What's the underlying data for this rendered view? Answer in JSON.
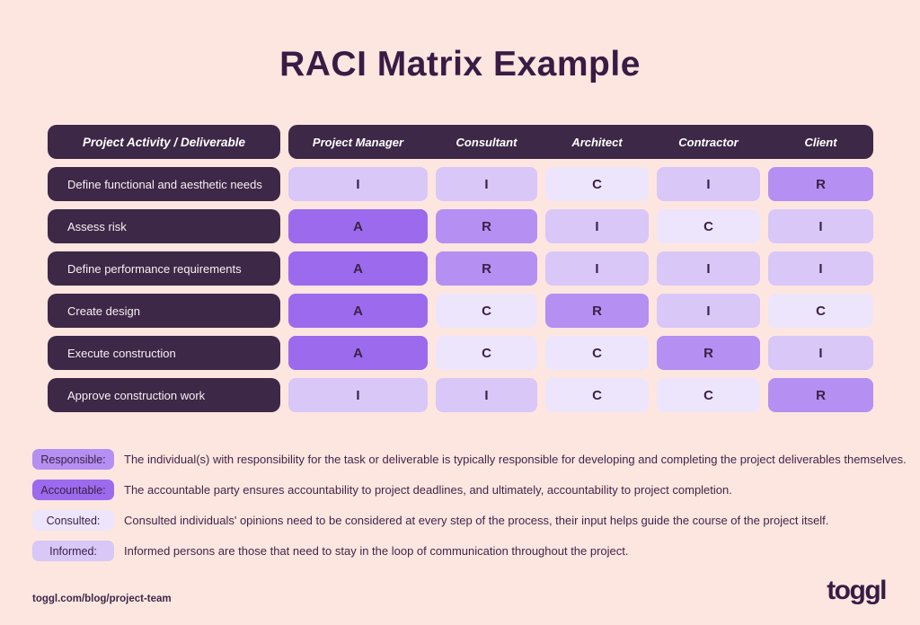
{
  "title": "RACI Matrix Example",
  "colors": {
    "background": "#fee6e0",
    "dark_pill": "#3d2847",
    "A": "#9c6aec",
    "R": "#b58ff1",
    "I": "#d8c7f7",
    "C": "#ede5fb",
    "letter_text": "#3b2147",
    "title_text": "#3a1b44"
  },
  "matrix": {
    "activity_header": "Project Activity / Deliverable",
    "roles": [
      "Project Manager",
      "Consultant",
      "Architect",
      "Contractor",
      "Client"
    ],
    "rows": [
      {
        "activity": "Define functional and aesthetic needs",
        "values": [
          "I",
          "I",
          "C",
          "I",
          "R"
        ]
      },
      {
        "activity": "Assess risk",
        "values": [
          "A",
          "R",
          "I",
          "C",
          "I"
        ]
      },
      {
        "activity": "Define performance requirements",
        "values": [
          "A",
          "R",
          "I",
          "I",
          "I"
        ]
      },
      {
        "activity": "Create design",
        "values": [
          "A",
          "C",
          "R",
          "I",
          "C"
        ]
      },
      {
        "activity": "Execute construction",
        "values": [
          "A",
          "C",
          "C",
          "R",
          "I"
        ]
      },
      {
        "activity": "Approve construction work",
        "values": [
          "I",
          "I",
          "C",
          "C",
          "R"
        ]
      }
    ]
  },
  "legend": [
    {
      "key": "R",
      "label": "Responsible:",
      "description": "The individual(s) with responsibility for the task or deliverable is typically responsible for developing and completing the project deliverables themselves."
    },
    {
      "key": "A",
      "label": "Accountable:",
      "description": "The accountable party ensures accountability to project deadlines, and ultimately, accountability to project completion."
    },
    {
      "key": "C",
      "label": "Consulted:",
      "description": "Consulted individuals' opinions need to be considered at every step of the process, their input helps guide the course of the project itself."
    },
    {
      "key": "I",
      "label": "Informed:",
      "description": "Informed persons are those that need to stay in the loop of communication throughout the project."
    }
  ],
  "footer": {
    "url": "toggl.com/blog/project-team",
    "logo_text": "toggl"
  }
}
